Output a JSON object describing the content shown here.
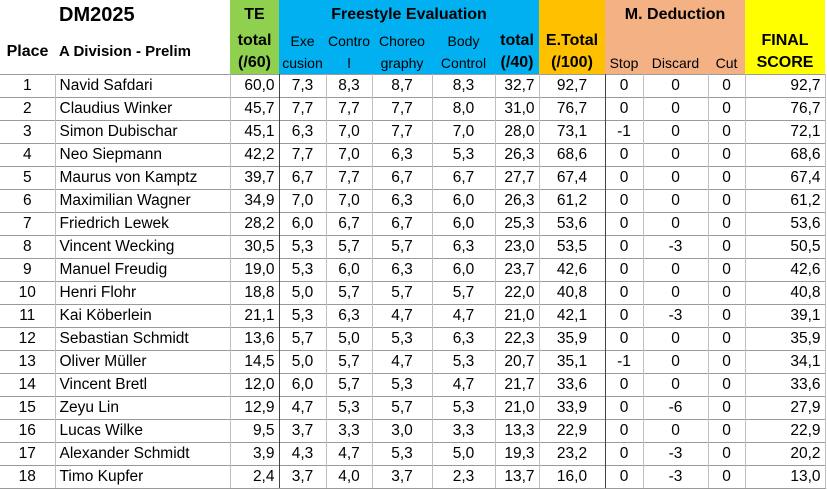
{
  "header": {
    "title": "DM2025",
    "te_label": "TE",
    "freestyle_label": "Freestyle Evaluation",
    "deduction_label": "M. Deduction",
    "place_label": "Place",
    "division_label": "A Division - Prelim",
    "te_total_1": "total",
    "te_total_2": "(/60)",
    "exe_1": "Exe",
    "exe_2": "cusion",
    "control_1": "Contro",
    "control_2": "l",
    "choreo_1": "Choreo",
    "choreo_2": "graphy",
    "body_1": "Body",
    "body_2": "Control",
    "f_total_1": "total",
    "f_total_2": "(/40)",
    "etotal_1": "E.Total",
    "etotal_2": "(/100)",
    "stop": "Stop",
    "discard": "Discard",
    "cut": "Cut",
    "final_1": "FINAL",
    "final_2": "SCORE"
  },
  "rows": [
    {
      "place": "1",
      "name": "Navid Safdari",
      "te": "60,0",
      "exe": "7,3",
      "control": "8,3",
      "choreo": "8,7",
      "body": "8,3",
      "ftotal": "32,7",
      "etotal": "92,7",
      "stop": "0",
      "discard": "0",
      "cut": "0",
      "final": "92,7"
    },
    {
      "place": "2",
      "name": "Claudius Winker",
      "te": "45,7",
      "exe": "7,7",
      "control": "7,7",
      "choreo": "7,7",
      "body": "8,0",
      "ftotal": "31,0",
      "etotal": "76,7",
      "stop": "0",
      "discard": "0",
      "cut": "0",
      "final": "76,7"
    },
    {
      "place": "3",
      "name": "Simon Dubischar",
      "te": "45,1",
      "exe": "6,3",
      "control": "7,0",
      "choreo": "7,7",
      "body": "7,0",
      "ftotal": "28,0",
      "etotal": "73,1",
      "stop": "-1",
      "discard": "0",
      "cut": "0",
      "final": "72,1"
    },
    {
      "place": "4",
      "name": "Neo Siepmann",
      "te": "42,2",
      "exe": "7,7",
      "control": "7,0",
      "choreo": "6,3",
      "body": "5,3",
      "ftotal": "26,3",
      "etotal": "68,6",
      "stop": "0",
      "discard": "0",
      "cut": "0",
      "final": "68,6"
    },
    {
      "place": "5",
      "name": "Maurus von Kamptz",
      "te": "39,7",
      "exe": "6,7",
      "control": "7,7",
      "choreo": "6,7",
      "body": "6,7",
      "ftotal": "27,7",
      "etotal": "67,4",
      "stop": "0",
      "discard": "0",
      "cut": "0",
      "final": "67,4"
    },
    {
      "place": "6",
      "name": "Maximilian Wagner",
      "te": "34,9",
      "exe": "7,0",
      "control": "7,0",
      "choreo": "6,3",
      "body": "6,0",
      "ftotal": "26,3",
      "etotal": "61,2",
      "stop": "0",
      "discard": "0",
      "cut": "0",
      "final": "61,2"
    },
    {
      "place": "7",
      "name": "Friedrich Lewek",
      "te": "28,2",
      "exe": "6,0",
      "control": "6,7",
      "choreo": "6,7",
      "body": "6,0",
      "ftotal": "25,3",
      "etotal": "53,6",
      "stop": "0",
      "discard": "0",
      "cut": "0",
      "final": "53,6"
    },
    {
      "place": "8",
      "name": "Vincent Wecking",
      "te": "30,5",
      "exe": "5,3",
      "control": "5,7",
      "choreo": "5,7",
      "body": "6,3",
      "ftotal": "23,0",
      "etotal": "53,5",
      "stop": "0",
      "discard": "-3",
      "cut": "0",
      "final": "50,5"
    },
    {
      "place": "9",
      "name": "Manuel Freudig",
      "te": "19,0",
      "exe": "5,3",
      "control": "6,0",
      "choreo": "6,3",
      "body": "6,0",
      "ftotal": "23,7",
      "etotal": "42,6",
      "stop": "0",
      "discard": "0",
      "cut": "0",
      "final": "42,6"
    },
    {
      "place": "10",
      "name": "Henri Flohr",
      "te": "18,8",
      "exe": "5,0",
      "control": "5,7",
      "choreo": "5,7",
      "body": "5,7",
      "ftotal": "22,0",
      "etotal": "40,8",
      "stop": "0",
      "discard": "0",
      "cut": "0",
      "final": "40,8"
    },
    {
      "place": "11",
      "name": "Kai Köberlein",
      "te": "21,1",
      "exe": "5,3",
      "control": "6,3",
      "choreo": "4,7",
      "body": "4,7",
      "ftotal": "21,0",
      "etotal": "42,1",
      "stop": "0",
      "discard": "-3",
      "cut": "0",
      "final": "39,1"
    },
    {
      "place": "12",
      "name": "Sebastian Schmidt",
      "te": "13,6",
      "exe": "5,7",
      "control": "5,0",
      "choreo": "5,3",
      "body": "6,3",
      "ftotal": "22,3",
      "etotal": "35,9",
      "stop": "0",
      "discard": "0",
      "cut": "0",
      "final": "35,9"
    },
    {
      "place": "13",
      "name": "Oliver Müller",
      "te": "14,5",
      "exe": "5,0",
      "control": "5,7",
      "choreo": "4,7",
      "body": "5,3",
      "ftotal": "20,7",
      "etotal": "35,1",
      "stop": "-1",
      "discard": "0",
      "cut": "0",
      "final": "34,1"
    },
    {
      "place": "14",
      "name": "Vincent Bretl",
      "te": "12,0",
      "exe": "6,0",
      "control": "5,7",
      "choreo": "5,3",
      "body": "4,7",
      "ftotal": "21,7",
      "etotal": "33,6",
      "stop": "0",
      "discard": "0",
      "cut": "0",
      "final": "33,6"
    },
    {
      "place": "15",
      "name": "Zeyu Lin",
      "te": "12,9",
      "exe": "4,7",
      "control": "5,3",
      "choreo": "5,7",
      "body": "5,3",
      "ftotal": "21,0",
      "etotal": "33,9",
      "stop": "0",
      "discard": "-6",
      "cut": "0",
      "final": "27,9"
    },
    {
      "place": "16",
      "name": "Lucas Wilke",
      "te": "9,5",
      "exe": "3,7",
      "control": "3,3",
      "choreo": "3,0",
      "body": "3,3",
      "ftotal": "13,3",
      "etotal": "22,9",
      "stop": "0",
      "discard": "0",
      "cut": "0",
      "final": "22,9"
    },
    {
      "place": "17",
      "name": "Alexander Schmidt",
      "te": "3,9",
      "exe": "4,3",
      "control": "4,7",
      "choreo": "5,3",
      "body": "5,0",
      "ftotal": "19,3",
      "etotal": "23,2",
      "stop": "0",
      "discard": "-3",
      "cut": "0",
      "final": "20,2"
    },
    {
      "place": "18",
      "name": "Timo Kupfer",
      "te": "2,4",
      "exe": "3,7",
      "control": "4,0",
      "choreo": "3,7",
      "body": "2,3",
      "ftotal": "13,7",
      "etotal": "16,0",
      "stop": "0",
      "discard": "-3",
      "cut": "0",
      "final": "13,0"
    }
  ],
  "colors": {
    "te_green": "#8fd14f",
    "freestyle_blue": "#00b0f0",
    "etotal_yellow": "#ffc000",
    "deduction_peach": "#f4b183",
    "final_yellow": "#ffff00"
  }
}
